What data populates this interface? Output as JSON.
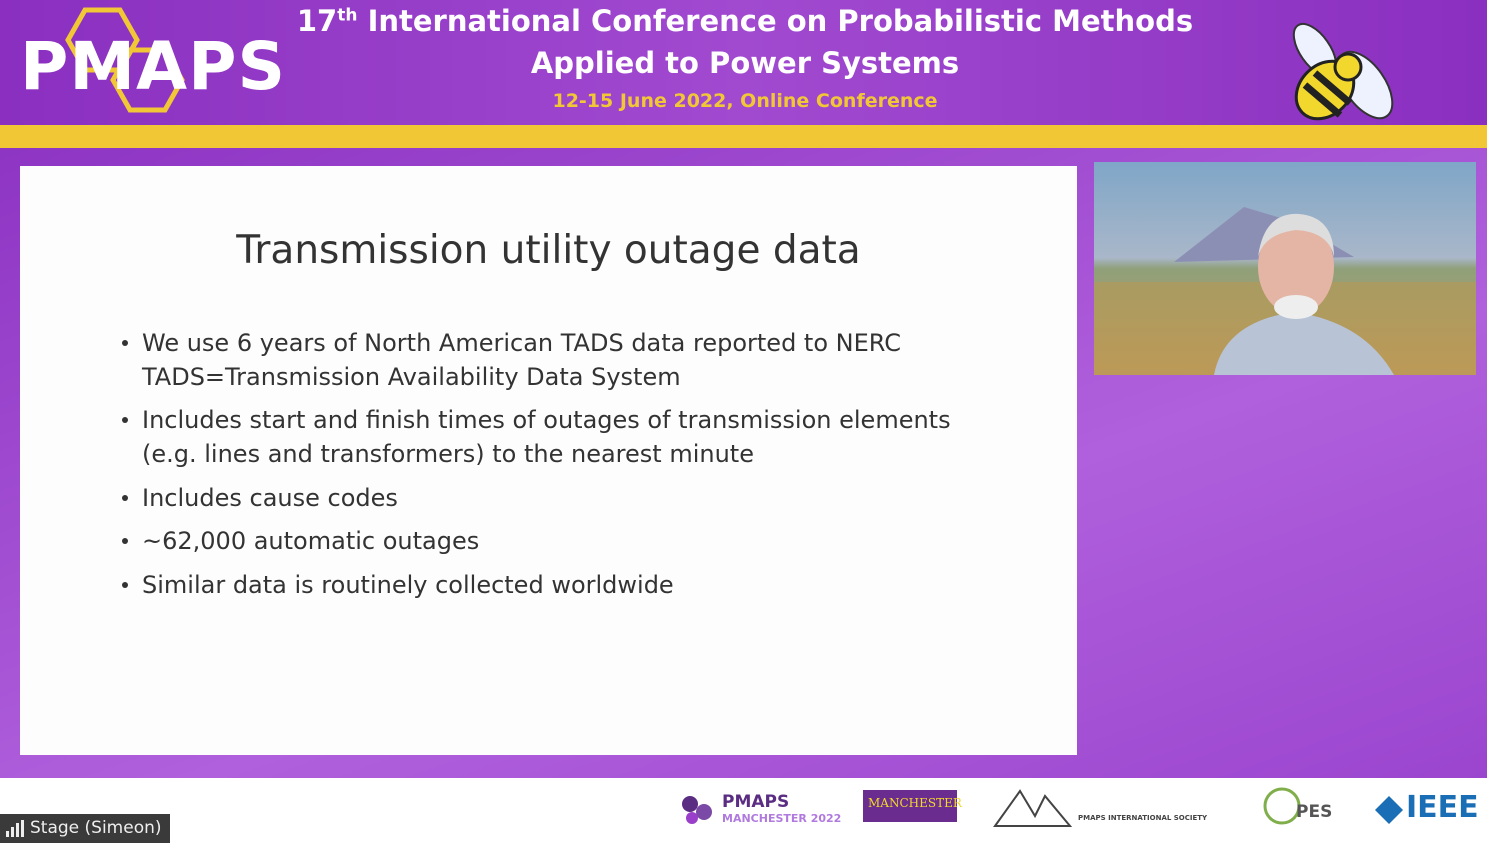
{
  "header": {
    "logo": "PMAPS",
    "title_number": "17",
    "title_superscript": "th",
    "title_rest": "International Conference on Probabilistic Methods",
    "title_line2": "Applied to Power Systems",
    "subtitle": "12-15 June 2022, Online Conference"
  },
  "slide": {
    "title": "Transmission utility outage data",
    "bullets": [
      {
        "lines": [
          "We use 6 years of North American TADS data reported to NERC",
          "TADS=Transmission Availability Data System"
        ]
      },
      {
        "lines": [
          "Includes start and finish times of outages of transmission elements",
          "(e.g. lines and transformers) to the nearest minute"
        ]
      },
      {
        "lines": [
          "Includes cause codes"
        ]
      },
      {
        "lines": [
          "~62,000 automatic outages"
        ]
      },
      {
        "lines": [
          "Similar data is routinely collected worldwide"
        ]
      }
    ]
  },
  "footer": {
    "sponsors": [
      "PMAPS",
      "MANCHESTER 2022",
      "MANCHESTER",
      "PMAPS INTERNATIONAL SOCIETY",
      "PES",
      "IEEE"
    ]
  },
  "stage_label": "Stage (Simeon)"
}
